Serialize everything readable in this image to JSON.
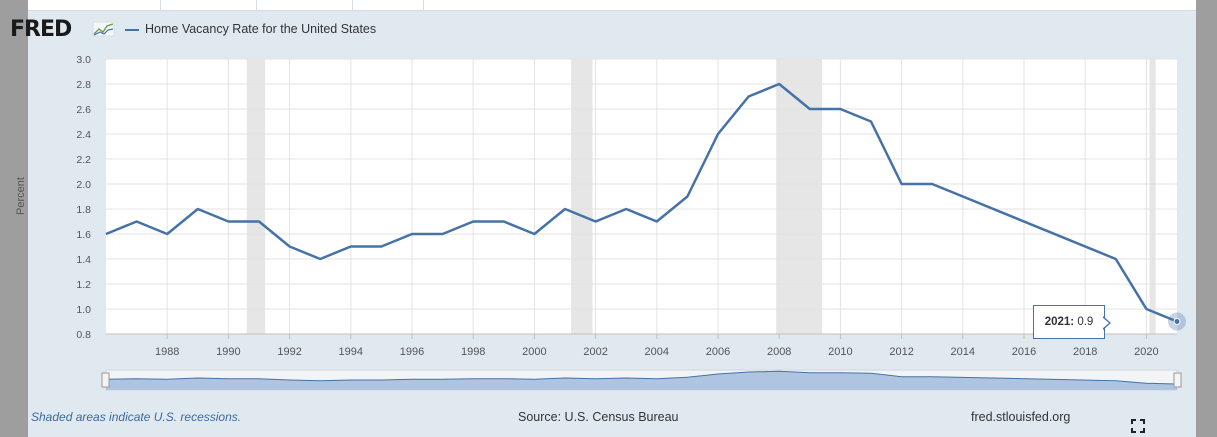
{
  "brand": {
    "logo_text": "FRED"
  },
  "legend": {
    "series_label": "Home Vacancy Rate for the United States",
    "series_color": "#4572a7"
  },
  "tooltip": {
    "year_label": "2021:",
    "value_label": "0.9"
  },
  "footer": {
    "recession_note": "Shaded areas indicate U.S. recessions.",
    "source": "Source: U.S. Census Bureau",
    "site": "fred.stlouisfed.org"
  },
  "icons": {
    "logo": "fred-sparkline-icon",
    "fullscreen": "fullscreen-icon"
  },
  "colors": {
    "line": "#4572a7",
    "recession": "#e6e6e6",
    "navigator_fill": "#aec4e0",
    "navigator_line": "#4572a7"
  },
  "chart_data": {
    "type": "line",
    "title": "",
    "xlabel": "",
    "ylabel": "Percent",
    "xlim": [
      1986,
      2021
    ],
    "ylim": [
      0.8,
      3.0
    ],
    "yticks": [
      "0.8",
      "1.0",
      "1.2",
      "1.4",
      "1.6",
      "1.8",
      "2.0",
      "2.2",
      "2.4",
      "2.6",
      "2.8",
      "3.0"
    ],
    "xticks": [
      "1988",
      "1990",
      "1992",
      "1994",
      "1996",
      "1998",
      "2000",
      "2002",
      "2004",
      "2006",
      "2008",
      "2010",
      "2012",
      "2014",
      "2016",
      "2018",
      "2020"
    ],
    "grid": true,
    "recessions": [
      [
        1990.6,
        1991.2
      ],
      [
        2001.2,
        2001.9
      ],
      [
        2007.9,
        2009.4
      ],
      [
        2020.1,
        2020.3
      ]
    ],
    "series": [
      {
        "name": "Home Vacancy Rate for the United States",
        "x": [
          1986,
          1987,
          1988,
          1989,
          1990,
          1991,
          1992,
          1993,
          1994,
          1995,
          1996,
          1997,
          1998,
          1999,
          2000,
          2001,
          2002,
          2003,
          2004,
          2005,
          2006,
          2007,
          2008,
          2009,
          2010,
          2011,
          2012,
          2013,
          2019,
          2020,
          2021
        ],
        "values": [
          1.6,
          1.7,
          1.6,
          1.8,
          1.7,
          1.7,
          1.5,
          1.4,
          1.5,
          1.5,
          1.6,
          1.6,
          1.7,
          1.7,
          1.6,
          1.8,
          1.7,
          1.8,
          1.7,
          1.9,
          2.4,
          2.7,
          2.8,
          2.6,
          2.6,
          2.5,
          2.0,
          2.0,
          1.4,
          1.0,
          0.9
        ]
      }
    ],
    "highlight": {
      "x": 2021,
      "value": 0.9
    }
  }
}
